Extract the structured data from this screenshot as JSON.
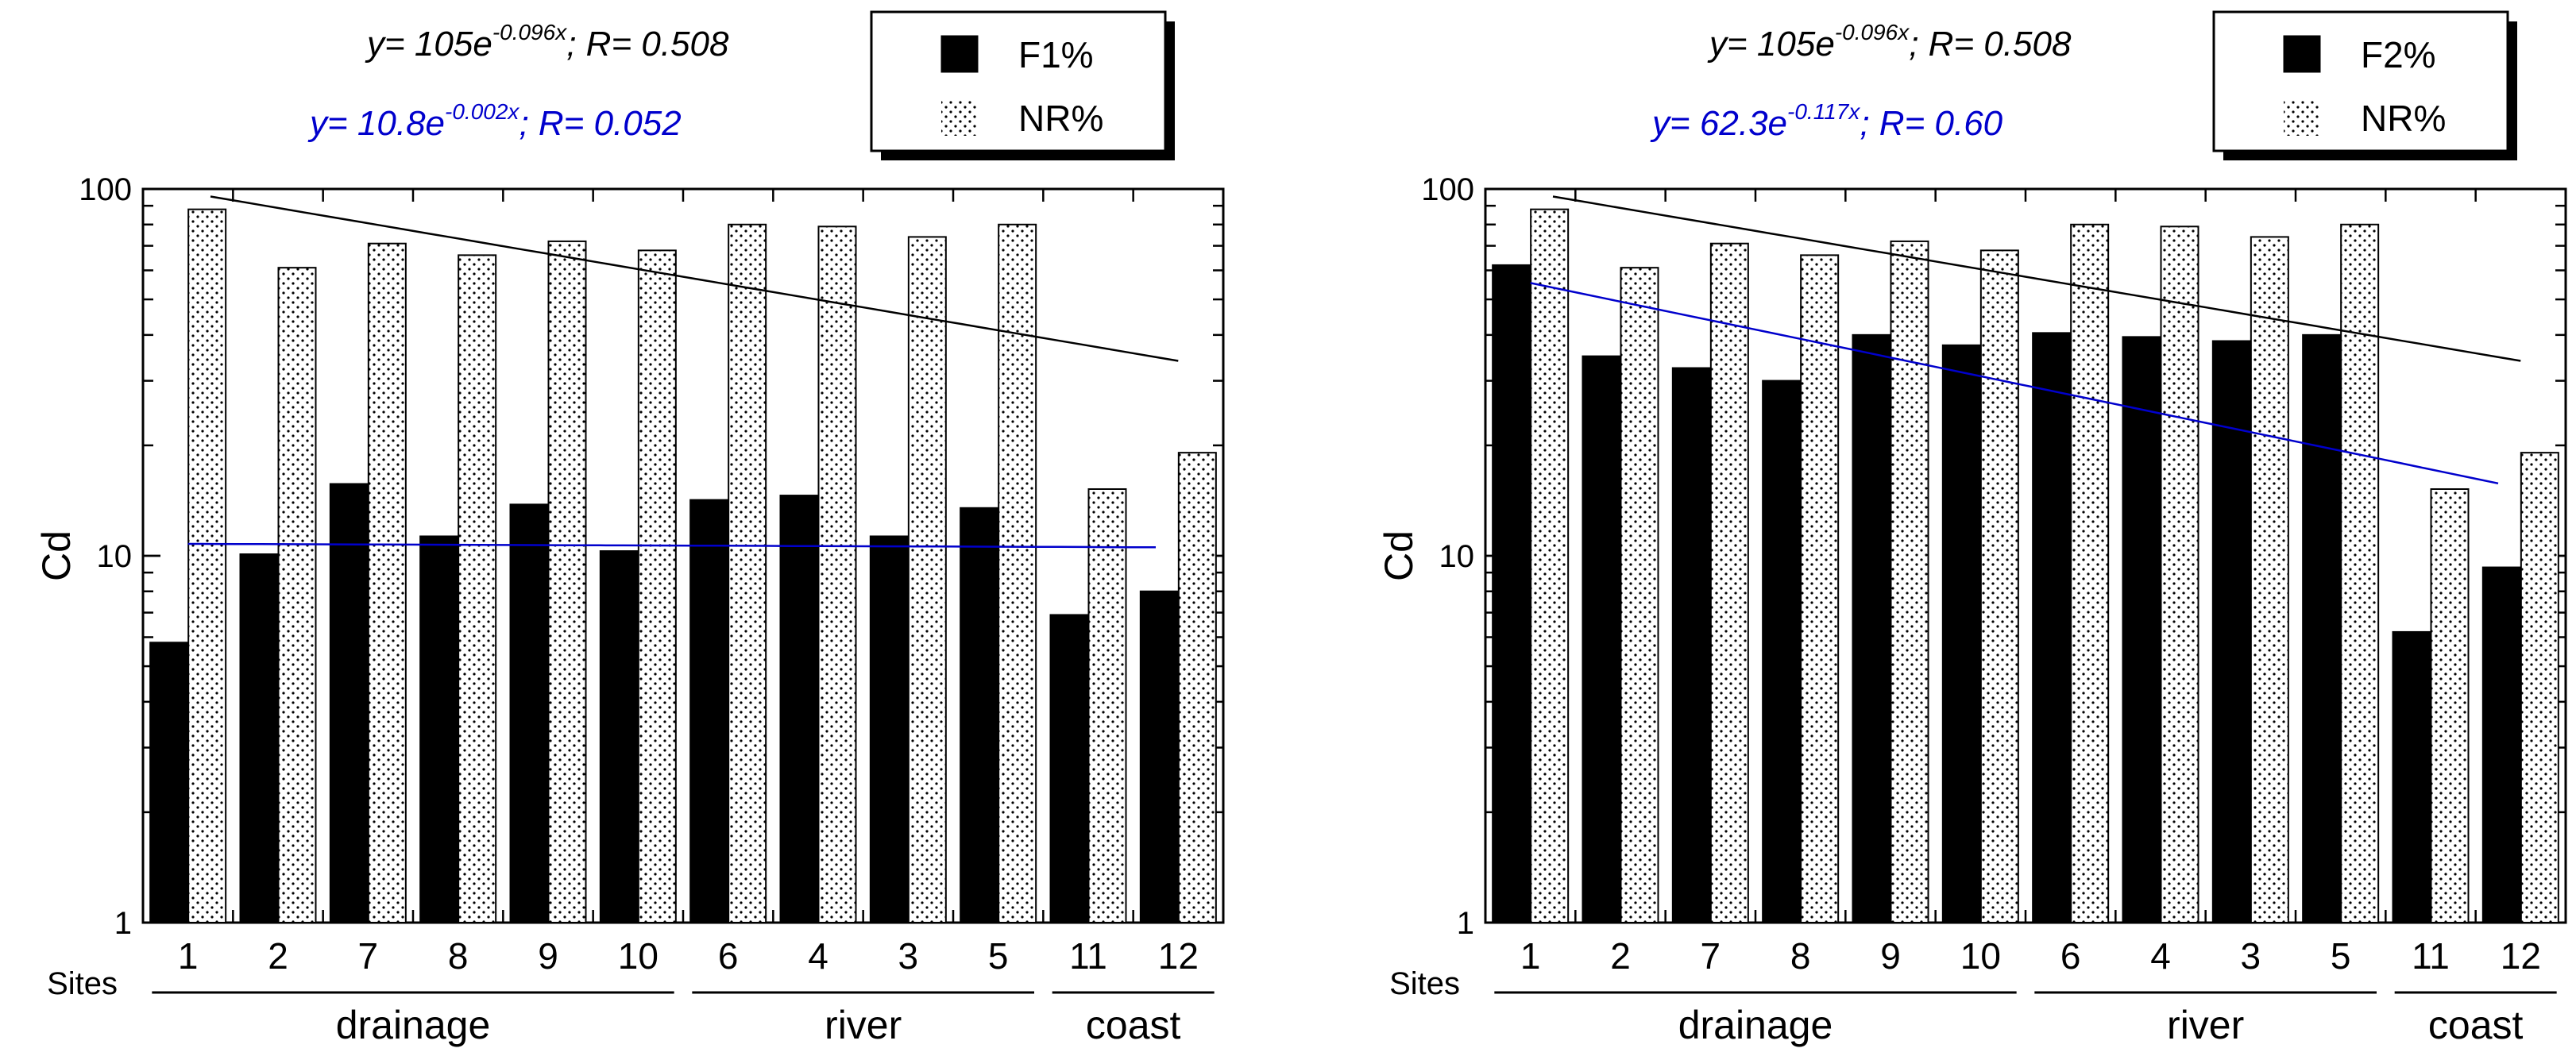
{
  "chart_data": [
    {
      "type": "bar",
      "xlabel": "Sites",
      "ylabel": "Cd",
      "yscale": "log",
      "ylim": [
        1,
        100
      ],
      "yticks": [
        "1",
        "10",
        "100"
      ],
      "categories": [
        "1",
        "2",
        "7",
        "8",
        "9",
        "10",
        "6",
        "4",
        "3",
        "5",
        "11",
        "12"
      ],
      "groups": [
        {
          "label": "drainage",
          "from": 0,
          "to": 5
        },
        {
          "label": "river",
          "from": 6,
          "to": 9
        },
        {
          "label": "coast",
          "from": 10,
          "to": 11
        }
      ],
      "series": [
        {
          "name": "F1%",
          "pattern": "solid",
          "color": "#000000",
          "values": [
            5.8,
            10.1,
            15.7,
            11.3,
            13.8,
            10.3,
            14.2,
            14.6,
            11.3,
            13.5,
            6.9,
            8.0
          ]
        },
        {
          "name": "NR%",
          "pattern": "dotted",
          "color": "#000000",
          "values": [
            88,
            61,
            71,
            66,
            72,
            68,
            80,
            79,
            74,
            80,
            15.2,
            19.1
          ]
        }
      ],
      "fits": [
        {
          "equation": "y= 105e",
          "exponent": "-0.096x",
          "r_text": "; R= 0.508",
          "color": "#000000",
          "a": 105,
          "b": -0.096
        },
        {
          "equation": "y= 10.8e",
          "exponent": "-0.002x",
          "r_text": "; R= 0.052",
          "color": "#0000cc",
          "a": 10.8,
          "b": -0.002
        }
      ],
      "legend_position": "top-right"
    },
    {
      "type": "bar",
      "xlabel": "Sites",
      "ylabel": "Cd",
      "yscale": "log",
      "ylim": [
        1,
        100
      ],
      "yticks": [
        "1",
        "10",
        "100"
      ],
      "categories": [
        "1",
        "2",
        "7",
        "8",
        "9",
        "10",
        "6",
        "4",
        "3",
        "5",
        "11",
        "12"
      ],
      "groups": [
        {
          "label": "drainage",
          "from": 0,
          "to": 5
        },
        {
          "label": "river",
          "from": 6,
          "to": 9
        },
        {
          "label": "coast",
          "from": 10,
          "to": 11
        }
      ],
      "series": [
        {
          "name": "F2%",
          "pattern": "solid",
          "color": "#000000",
          "values": [
            62,
            35,
            32.5,
            30,
            40,
            37.5,
            40.5,
            39.5,
            38.5,
            40,
            6.2,
            9.3
          ]
        },
        {
          "name": "NR%",
          "pattern": "dotted",
          "color": "#000000",
          "values": [
            88,
            61,
            71,
            66,
            72,
            68,
            80,
            79,
            74,
            80,
            15.2,
            19.1
          ]
        }
      ],
      "fits": [
        {
          "equation": "y= 105e",
          "exponent": "-0.096x",
          "r_text": "; R= 0.508",
          "color": "#000000",
          "a": 105,
          "b": -0.096
        },
        {
          "equation": "y= 62.3e",
          "exponent": "-0.117x",
          "r_text": "; R= 0.60",
          "color": "#0000cc",
          "a": 62.3,
          "b": -0.117
        }
      ],
      "legend_position": "top-right"
    }
  ]
}
